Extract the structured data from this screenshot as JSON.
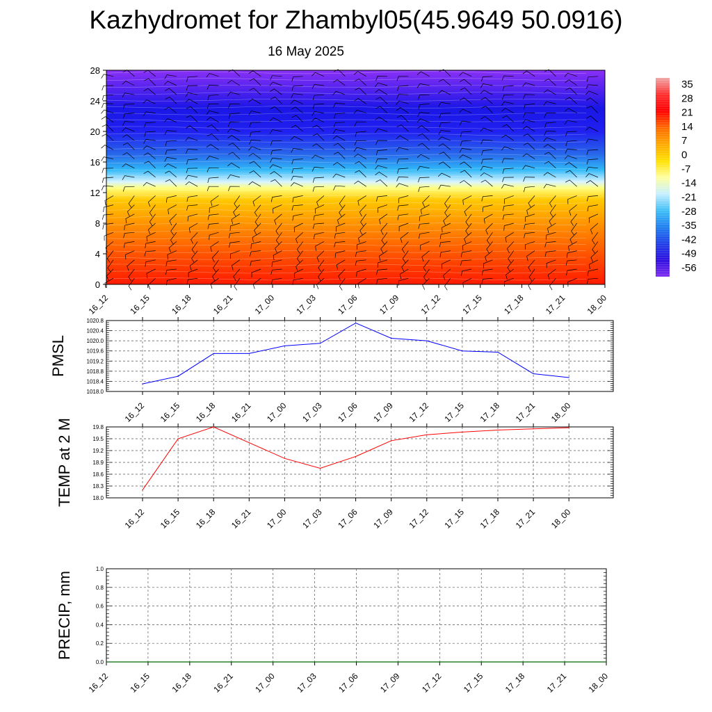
{
  "page": {
    "title": "Kazhydromet for Zhambyl05(45.9649 50.0916)",
    "subtitle": "16 May 2025"
  },
  "chart_data": [
    {
      "type": "heatmap",
      "name": "height-time-temperature-section",
      "x_labels": [
        "16_12",
        "16_15",
        "16_18",
        "16_21",
        "17_00",
        "17_03",
        "17_06",
        "17_09",
        "17_12",
        "17_15",
        "17_18",
        "17_21",
        "18_00"
      ],
      "yticks": [
        0,
        4,
        8,
        12,
        16,
        20,
        24,
        28
      ],
      "ylim": [
        0,
        28
      ],
      "colorbar_labels": [
        "35",
        "28",
        "21",
        "14",
        "7",
        "0",
        "-7",
        "-14",
        "-21",
        "-28",
        "-35",
        "-42",
        "-49",
        "-56"
      ],
      "colorbar_stops": [
        "#ff0000",
        "#ff6a00",
        "#ffa800",
        "#ffe000",
        "#ffffa0",
        "#c8f0ff",
        "#40c0f8",
        "#2080f0",
        "#2040e8",
        "#3010e0",
        "#8030f0"
      ],
      "layers": [
        {
          "z": 0,
          "value": 28,
          "color": "#ff1a00"
        },
        {
          "z": 4,
          "value": 21,
          "color": "#ff5400"
        },
        {
          "z": 8,
          "value": 14,
          "color": "#ff9400"
        },
        {
          "z": 11,
          "value": 7,
          "color": "#ffc800"
        },
        {
          "z": 12.6,
          "value": 0,
          "color": "#ffff80"
        },
        {
          "z": 13.4,
          "value": -14,
          "color": "#d8f4ff"
        },
        {
          "z": 15,
          "value": -28,
          "color": "#30b8f8"
        },
        {
          "z": 17,
          "value": -42,
          "color": "#2868ea"
        },
        {
          "z": 20,
          "value": -56,
          "color": "#2020f0"
        },
        {
          "z": 23,
          "value": -56,
          "color": "#1a16e6"
        },
        {
          "z": 28,
          "value": -49,
          "color": "#8a30f6"
        }
      ],
      "wind_barbs": "shown"
    },
    {
      "type": "line",
      "name": "pmsl",
      "ylabel": "PMSL",
      "x": [
        "16_12",
        "16_15",
        "16_18",
        "16_21",
        "17_00",
        "17_03",
        "17_06",
        "17_09",
        "17_12",
        "17_15",
        "17_18",
        "17_21",
        "18_00"
      ],
      "yticks": [
        "1018.0",
        "1018.4",
        "1018.8",
        "1019.2",
        "1019.6",
        "1020.0",
        "1020.4",
        "1020.8"
      ],
      "ylim": [
        1018.0,
        1020.8
      ],
      "series": [
        {
          "values": [
            1018.3,
            1018.6,
            1019.5,
            1019.5,
            1019.8,
            1019.9,
            1020.7,
            1020.1,
            1020.0,
            1019.6,
            1019.55,
            1018.7,
            1018.55
          ],
          "color": "#0000ff"
        }
      ],
      "grid": true
    },
    {
      "type": "line",
      "name": "temp-2m",
      "ylabel": "TEMP at 2 M",
      "x": [
        "16_12",
        "16_15",
        "16_18",
        "16_21",
        "17_00",
        "17_03",
        "17_06",
        "17_09",
        "17_12",
        "17_15",
        "17_18",
        "17_21",
        "18_00"
      ],
      "yticks": [
        "18.0",
        "18.3",
        "18.6",
        "18.9",
        "19.2",
        "19.5",
        "19.8"
      ],
      "ylim": [
        18.0,
        19.8
      ],
      "series": [
        {
          "values": [
            18.2,
            19.5,
            19.8,
            19.4,
            19.0,
            18.75,
            19.05,
            19.45,
            19.6,
            19.67,
            19.72,
            19.75,
            19.78
          ],
          "color": "#ff0000"
        }
      ],
      "grid": true
    },
    {
      "type": "line",
      "name": "precip",
      "ylabel": "PRECIP, mm",
      "x": [
        "16_12",
        "16_15",
        "16_18",
        "16_21",
        "17_00",
        "17_03",
        "17_06",
        "17_09",
        "17_12",
        "17_15",
        "17_18",
        "17_21",
        "18_00"
      ],
      "yticks": [
        "0.0",
        "0.2",
        "0.4",
        "0.6",
        "0.8",
        "1.0"
      ],
      "ylim": [
        0.0,
        1.0
      ],
      "series": [
        {
          "values": [
            0,
            0,
            0,
            0,
            0,
            0,
            0,
            0,
            0,
            0,
            0,
            0,
            0
          ],
          "color": "#006400"
        }
      ],
      "grid": true
    }
  ]
}
